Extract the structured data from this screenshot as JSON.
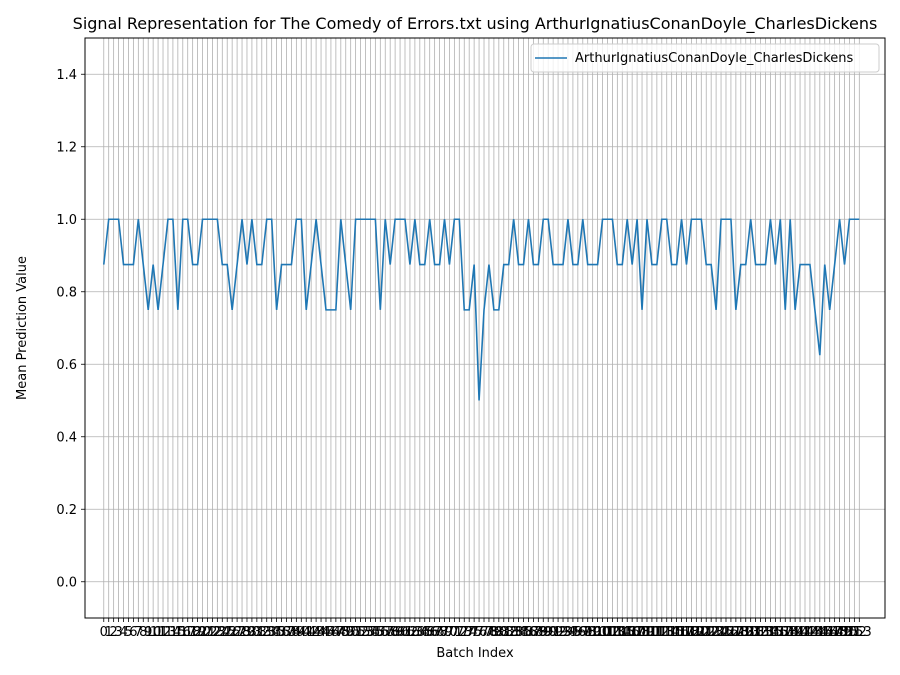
{
  "chart_data": {
    "type": "line",
    "title": "Signal Representation for The Comedy of Errors.txt using ArthurIgnatiusConanDoyle_CharlesDickens",
    "xlabel": "Batch Index",
    "ylabel": "Mean Prediction Value",
    "ylim": [
      -0.1,
      1.5
    ],
    "yticks": [
      "0.0",
      "0.2",
      "0.4",
      "0.6",
      "0.8",
      "1.0",
      "1.2",
      "1.4"
    ],
    "grid": true,
    "legend_position": "top-right",
    "series": [
      {
        "name": "ArthurIgnatiusConanDoyle_CharlesDickens",
        "color": "#1f77b4",
        "values": [
          0.875,
          1.0,
          1.0,
          1.0,
          0.875,
          0.875,
          0.875,
          1.0,
          0.875,
          0.75,
          0.875,
          0.75,
          0.875,
          1.0,
          1.0,
          0.75,
          1.0,
          1.0,
          0.875,
          0.875,
          1.0,
          1.0,
          1.0,
          1.0,
          0.875,
          0.875,
          0.75,
          0.875,
          1.0,
          0.875,
          1.0,
          0.875,
          0.875,
          1.0,
          1.0,
          0.75,
          0.875,
          0.875,
          0.875,
          1.0,
          1.0,
          0.75,
          0.875,
          1.0,
          0.875,
          0.75,
          0.75,
          0.75,
          1.0,
          0.875,
          0.75,
          1.0,
          1.0,
          1.0,
          1.0,
          1.0,
          0.75,
          1.0,
          0.875,
          1.0,
          1.0,
          1.0,
          0.875,
          1.0,
          0.875,
          0.875,
          1.0,
          0.875,
          0.875,
          1.0,
          0.875,
          1.0,
          1.0,
          0.75,
          0.75,
          0.875,
          0.5,
          0.75,
          0.875,
          0.75,
          0.75,
          0.875,
          0.875,
          1.0,
          0.875,
          0.875,
          1.0,
          0.875,
          0.875,
          1.0,
          1.0,
          0.875,
          0.875,
          0.875,
          1.0,
          0.875,
          0.875,
          1.0,
          0.875,
          0.875,
          0.875,
          1.0,
          1.0,
          1.0,
          0.875,
          0.875,
          1.0,
          0.875,
          1.0,
          0.75,
          1.0,
          0.875,
          0.875,
          1.0,
          1.0,
          0.875,
          0.875,
          1.0,
          0.875,
          1.0,
          1.0,
          1.0,
          0.875,
          0.875,
          0.75,
          1.0,
          1.0,
          1.0,
          0.75,
          0.875,
          0.875,
          1.0,
          0.875,
          0.875,
          0.875,
          1.0,
          0.875,
          1.0,
          0.75,
          1.0,
          0.75,
          0.875,
          0.875,
          0.875,
          0.75,
          0.625,
          0.875,
          0.75,
          0.875,
          1.0,
          0.875,
          1.0,
          1.0,
          1.0
        ]
      }
    ],
    "x_start": 0,
    "x_end": 153
  }
}
